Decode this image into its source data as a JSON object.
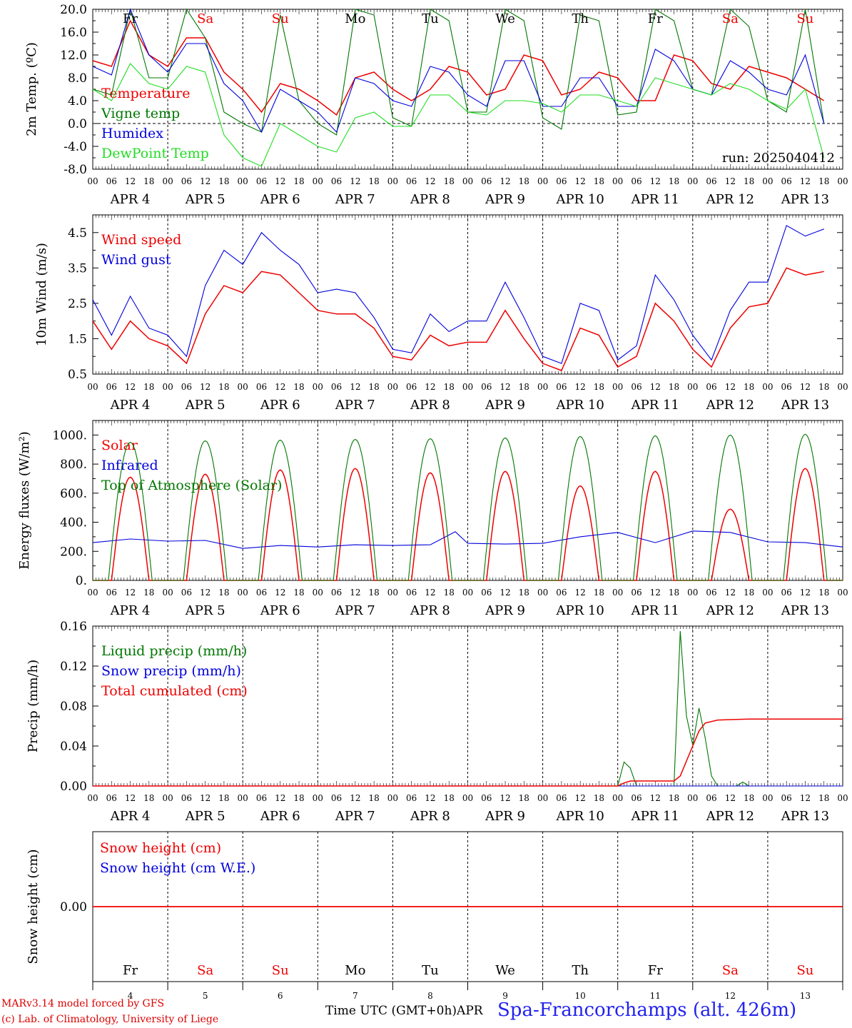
{
  "colors": {
    "red": "#ee0000",
    "green": "#007700",
    "lightgreen": "#22dd22",
    "blue": "#0000dd",
    "axis": "#000000",
    "weekday_weekend": "#ee0000",
    "weekday_normal": "#000000"
  },
  "days": {
    "weekdays": [
      "Fr",
      "Sa",
      "Su",
      "Mo",
      "Tu",
      "We",
      "Th",
      "Fr",
      "Sa",
      "Su"
    ],
    "weekend_flags": [
      false,
      true,
      true,
      false,
      false,
      false,
      false,
      false,
      true,
      true
    ],
    "date_labels": [
      "APR  4",
      "APR  5",
      "APR  6",
      "APR  7",
      "APR  8",
      "APR  9",
      "APR 10",
      "APR 11",
      "APR 12",
      "APR 13"
    ],
    "day_numbers": [
      "4",
      "5",
      "6",
      "7",
      "8",
      "9",
      "10",
      "11",
      "12",
      "13"
    ],
    "hour_ticks": [
      "00",
      "06",
      "12",
      "18"
    ],
    "final_tick": "00"
  },
  "chart_data": [
    {
      "type": "line",
      "ylabel": "2m Temp. (ºC)",
      "ylim": [
        -8,
        20
      ],
      "yticks": [
        "-8.0",
        "-4.0",
        "0.0",
        "4.0",
        "8.0",
        "12.0",
        "16.0",
        "20.0"
      ],
      "zero_line": true,
      "annotation": "run: 2025040412",
      "x_unit": "hours since APR 4 00 UTC",
      "series": [
        {
          "name": "Temperature",
          "color": "red",
          "x": [
            0,
            6,
            12,
            18,
            24,
            30,
            36,
            42,
            48,
            54,
            60,
            66,
            72,
            78,
            84,
            90,
            96,
            102,
            108,
            114,
            120,
            126,
            132,
            138,
            144,
            150,
            156,
            162,
            168,
            174,
            180,
            186,
            192,
            198,
            204,
            210,
            216,
            222,
            228,
            234
          ],
          "y": [
            11,
            10,
            18,
            12,
            10,
            15,
            15,
            9,
            6,
            2,
            7,
            6,
            4,
            1.5,
            8,
            9,
            6,
            4,
            6,
            10,
            9,
            5,
            6,
            12,
            11,
            5,
            6,
            9,
            8,
            4,
            4,
            12,
            11,
            7,
            6,
            10,
            9,
            8,
            6,
            4
          ]
        },
        {
          "name": "Vigne temp",
          "color": "green",
          "x": [
            0,
            6,
            12,
            18,
            24,
            30,
            36,
            42,
            48,
            54,
            60,
            66,
            72,
            78,
            84,
            90,
            96,
            102,
            108,
            114,
            120,
            126,
            132,
            138,
            144,
            150,
            156,
            162,
            168,
            174,
            180,
            186,
            192,
            198,
            204,
            210,
            216,
            222,
            228,
            234
          ],
          "y": [
            6,
            5,
            20,
            8,
            8,
            20,
            15,
            2,
            0,
            -1.5,
            19,
            4,
            0,
            -2,
            20,
            19,
            1,
            -0.5,
            20,
            18,
            2,
            2,
            20,
            18,
            1,
            -1,
            19,
            18,
            1.5,
            2,
            20,
            18,
            6,
            5,
            20,
            17,
            4,
            2,
            20,
            0
          ]
        },
        {
          "name": "Humidex",
          "color": "blue",
          "x": [
            0,
            6,
            12,
            18,
            24,
            30,
            36,
            42,
            48,
            54,
            60,
            66,
            72,
            78,
            84,
            90,
            96,
            102,
            108,
            114,
            120,
            126,
            132,
            138,
            144,
            150,
            156,
            162,
            168,
            174,
            180,
            186,
            192,
            198,
            204,
            210,
            216,
            222,
            228,
            234
          ],
          "y": [
            10,
            8.5,
            20,
            12,
            9,
            14,
            14,
            7,
            4,
            -1.5,
            6,
            4,
            2,
            -1.5,
            8,
            7,
            4,
            3,
            10,
            9,
            5,
            3,
            11,
            11,
            3,
            3,
            8,
            8,
            3,
            3,
            13,
            11,
            6,
            5,
            11,
            9,
            6,
            5,
            12,
            0
          ]
        },
        {
          "name": "DewPoint Temp",
          "color": "lightgreen",
          "x": [
            0,
            6,
            12,
            18,
            24,
            30,
            36,
            42,
            48,
            54,
            60,
            66,
            72,
            78,
            84,
            90,
            96,
            102,
            108,
            114,
            120,
            126,
            132,
            138,
            144,
            150,
            156,
            162,
            168,
            174,
            180,
            186,
            192,
            198,
            204,
            210,
            216,
            222,
            228,
            234
          ],
          "y": [
            6,
            4,
            10.5,
            7,
            6,
            10,
            9,
            -2,
            -6,
            -7.5,
            0,
            -2,
            -4,
            -5,
            1,
            2,
            -0.5,
            -0.5,
            5,
            5,
            2,
            1.5,
            4,
            4,
            3.5,
            2,
            5,
            5,
            4,
            3,
            8,
            7,
            6,
            5,
            7,
            6,
            4,
            2.5,
            6,
            -6
          ]
        }
      ]
    },
    {
      "type": "line",
      "ylabel": "10m Wind (m/s)",
      "ylim": [
        0.5,
        5
      ],
      "yticks": [
        "0.5",
        "1.5",
        "2.5",
        "3.5",
        "4.5"
      ],
      "x_unit": "hours since APR 4 00 UTC",
      "series": [
        {
          "name": "Wind speed",
          "color": "red",
          "x": [
            0,
            6,
            12,
            18,
            24,
            30,
            36,
            42,
            48,
            54,
            60,
            66,
            72,
            78,
            84,
            90,
            96,
            102,
            108,
            114,
            120,
            126,
            132,
            138,
            144,
            150,
            156,
            162,
            168,
            174,
            180,
            186,
            192,
            198,
            204,
            210,
            216,
            222,
            228,
            234
          ],
          "y": [
            2,
            1.2,
            2,
            1.5,
            1.3,
            0.8,
            2.2,
            3,
            2.8,
            3.4,
            3.3,
            2.8,
            2.3,
            2.2,
            2.2,
            1.8,
            1,
            0.9,
            1.6,
            1.3,
            1.4,
            1.4,
            2.3,
            1.5,
            0.8,
            0.6,
            1.8,
            1.6,
            0.7,
            1,
            2.5,
            2,
            1.2,
            0.7,
            1.8,
            2.4,
            2.5,
            3.5,
            3.3,
            3.4
          ]
        },
        {
          "name": "Wind gust",
          "color": "blue",
          "x": [
            0,
            6,
            12,
            18,
            24,
            30,
            36,
            42,
            48,
            54,
            60,
            66,
            72,
            78,
            84,
            90,
            96,
            102,
            108,
            114,
            120,
            126,
            132,
            138,
            144,
            150,
            156,
            162,
            168,
            174,
            180,
            186,
            192,
            198,
            204,
            210,
            216,
            222,
            228,
            234
          ],
          "y": [
            2.6,
            1.6,
            2.7,
            1.8,
            1.6,
            1,
            3,
            4,
            3.6,
            4.5,
            4,
            3.6,
            2.8,
            2.9,
            2.8,
            2.1,
            1.2,
            1.1,
            2.2,
            1.7,
            2,
            2,
            3.1,
            2.1,
            1,
            0.8,
            2.5,
            2.3,
            0.9,
            1.3,
            3.3,
            2.6,
            1.6,
            0.9,
            2.3,
            3.1,
            3.1,
            4.7,
            4.4,
            4.6
          ]
        }
      ]
    },
    {
      "type": "line",
      "ylabel": "Energy fluxes (W/m²)",
      "ylim": [
        0,
        1100
      ],
      "yticks": [
        "0.",
        "200.",
        "400.",
        "600.",
        "800.",
        "1000."
      ],
      "x_unit": "hours since APR 4 00 UTC",
      "series": [
        {
          "name": "Solar",
          "color": "red",
          "daily_peaks": [
            710,
            730,
            760,
            770,
            740,
            750,
            650,
            750,
            490,
            770
          ]
        },
        {
          "name": "Infrared",
          "color": "blue",
          "x": [
            0,
            12,
            24,
            36,
            48,
            60,
            72,
            84,
            96,
            108,
            116,
            120,
            132,
            144,
            156,
            168,
            180,
            192,
            204,
            216,
            228,
            240
          ],
          "y": [
            260,
            285,
            270,
            275,
            220,
            240,
            230,
            245,
            240,
            245,
            335,
            255,
            250,
            255,
            300,
            330,
            260,
            340,
            330,
            265,
            260,
            230
          ]
        },
        {
          "name": "Top of Atmosphere (Solar)",
          "color": "green",
          "daily_peaks": [
            950,
            960,
            965,
            970,
            975,
            980,
            990,
            995,
            1000,
            1005
          ]
        }
      ]
    },
    {
      "type": "line",
      "ylabel": "Precip (mm/h)",
      "ylim": [
        0,
        0.16
      ],
      "yticks": [
        "0.00",
        "0.04",
        "0.08",
        "0.12",
        "0.16"
      ],
      "x_unit": "hours since APR 4 00 UTC",
      "series": [
        {
          "name": "Liquid precip (mm/h)",
          "color": "green",
          "x": [
            0,
            168,
            170,
            172,
            174,
            176,
            178,
            186,
            188,
            190,
            192,
            194,
            196,
            198,
            200,
            206,
            208,
            210,
            240
          ],
          "y": [
            0,
            0,
            0.024,
            0.018,
            0,
            0,
            0,
            0,
            0.155,
            0.07,
            0.041,
            0.078,
            0.048,
            0.01,
            0,
            0,
            0.004,
            0,
            0
          ]
        },
        {
          "name": "Snow precip (mm/h)",
          "color": "blue",
          "x": [
            0,
            240
          ],
          "y": [
            0,
            0
          ]
        },
        {
          "name": "Total cumulated (cm)",
          "color": "red",
          "x": [
            0,
            168,
            170,
            172,
            186,
            188,
            190,
            192,
            194,
            196,
            200,
            210,
            240
          ],
          "y": [
            0,
            0,
            0.003,
            0.005,
            0.005,
            0.01,
            0.025,
            0.04,
            0.055,
            0.063,
            0.066,
            0.067,
            0.067
          ]
        }
      ]
    },
    {
      "type": "line",
      "ylabel": "Snow height (cm)",
      "ylim": [
        -1,
        1
      ],
      "yticks": [
        "0.00"
      ],
      "x_unit": "hours since APR 4 00 UTC",
      "series": [
        {
          "name": "Snow height (cm)",
          "color": "red",
          "x": [
            0,
            240
          ],
          "y": [
            0,
            0
          ]
        },
        {
          "name": "Snow height (cm W.E.)",
          "color": "blue",
          "x": [
            0,
            240
          ],
          "y": [
            0,
            0
          ]
        }
      ]
    }
  ],
  "footer": {
    "credit_line1": "MARv3.14 model forced by GFS",
    "credit_line2": "(c) Lab. of Climatology, University of Liege",
    "xlabel": "Time UTC (GMT+0h)APR",
    "station": "Spa-Francorchamps (alt. 426m)"
  }
}
